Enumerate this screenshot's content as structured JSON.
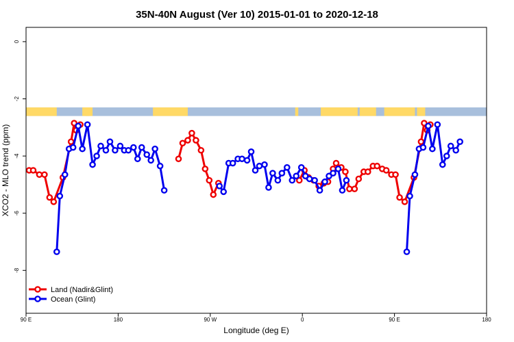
{
  "chart_data": {
    "type": "line",
    "title": "35N-40N August (Ver 10)   2015-01-01 to 2020-12-18",
    "xlabel": "Longitude (deg E)",
    "ylabel": "XCO2 - MLO trend (ppm)",
    "xlim": [
      90,
      540
    ],
    "ylim": [
      -9.5,
      0.5
    ],
    "x_ticks": [
      {
        "value": 90,
        "label": "90 E"
      },
      {
        "value": 180,
        "label": "180"
      },
      {
        "value": 270,
        "label": "90 W"
      },
      {
        "value": 360,
        "label": "0"
      },
      {
        "value": 450,
        "label": "90 E"
      },
      {
        "value": 540,
        "label": "180"
      }
    ],
    "y_ticks": [
      {
        "value": 0,
        "label": "0"
      },
      {
        "value": -2,
        "label": "-2"
      },
      {
        "value": -4,
        "label": "-4"
      },
      {
        "value": -6,
        "label": "-6"
      },
      {
        "value": -8,
        "label": "-8"
      }
    ],
    "grid": false,
    "legend_position": "bottom-left",
    "land_ocean_strip": {
      "y_range": [
        -2.6,
        -2.3
      ],
      "land_color": "#ffd966",
      "ocean_color": "#a8bfdc",
      "land_spans": [
        [
          90,
          120
        ],
        [
          145,
          155
        ],
        [
          148,
          152
        ],
        [
          214,
          248
        ],
        [
          353,
          356
        ],
        [
          378,
          414
        ],
        [
          416,
          432
        ],
        [
          440,
          470
        ],
        [
          472,
          480
        ]
      ]
    },
    "series": [
      {
        "name": "Land (Nadir&Glint)",
        "color": "#ee0000",
        "segments": [
          [
            [
              93,
              -4.5
            ],
            [
              97,
              -4.5
            ],
            [
              103,
              -4.65
            ],
            [
              108,
              -4.65
            ],
            [
              113,
              -5.45
            ],
            [
              117,
              -5.6
            ],
            [
              126,
              -4.75
            ],
            [
              134,
              -3.5
            ],
            [
              137,
              -2.85
            ],
            [
              139,
              -3.1
            ],
            [
              143,
              -2.9
            ]
          ],
          [
            [
              239,
              -4.1
            ],
            [
              243,
              -3.55
            ],
            [
              248,
              -3.45
            ],
            [
              252,
              -3.2
            ],
            [
              256,
              -3.45
            ],
            [
              261,
              -3.8
            ],
            [
              265,
              -4.45
            ],
            [
              269,
              -4.85
            ],
            [
              273,
              -5.35
            ],
            [
              278,
              -4.95
            ]
          ],
          [
            [
              357,
              -4.85
            ],
            [
              362,
              -4.5
            ],
            [
              366,
              -4.75
            ],
            [
              371,
              -4.85
            ],
            [
              376,
              -5.05
            ],
            [
              381,
              -4.95
            ],
            [
              385,
              -4.9
            ],
            [
              390,
              -4.45
            ],
            [
              393,
              -4.25
            ],
            [
              398,
              -4.4
            ],
            [
              402,
              -4.55
            ],
            [
              406,
              -5.15
            ],
            [
              411,
              -5.15
            ],
            [
              415,
              -4.8
            ],
            [
              420,
              -4.55
            ],
            [
              424,
              -4.55
            ],
            [
              429,
              -4.35
            ],
            [
              433,
              -4.35
            ],
            [
              438,
              -4.45
            ],
            [
              442,
              -4.5
            ],
            [
              447,
              -4.65
            ],
            [
              451,
              -4.65
            ],
            [
              455,
              -5.45
            ],
            [
              460,
              -5.6
            ],
            [
              469,
              -4.75
            ],
            [
              476,
              -3.5
            ],
            [
              479,
              -2.85
            ],
            [
              482,
              -3.1
            ],
            [
              485,
              -2.9
            ]
          ]
        ]
      },
      {
        "name": "Ocean (Glint)",
        "color": "#0000ee",
        "segments": [
          [
            [
              120,
              -7.35
            ],
            [
              123,
              -5.4
            ],
            [
              128,
              -4.65
            ],
            [
              132,
              -3.75
            ],
            [
              136,
              -3.7
            ],
            [
              141,
              -2.95
            ],
            [
              145,
              -3.75
            ],
            [
              150,
              -2.9
            ],
            [
              155,
              -4.3
            ],
            [
              159,
              -4.0
            ],
            [
              163,
              -3.65
            ],
            [
              168,
              -3.8
            ],
            [
              172,
              -3.5
            ],
            [
              177,
              -3.8
            ],
            [
              182,
              -3.65
            ],
            [
              186,
              -3.8
            ],
            [
              190,
              -3.8
            ],
            [
              195,
              -3.7
            ],
            [
              199,
              -4.1
            ],
            [
              203,
              -3.7
            ],
            [
              208,
              -3.95
            ],
            [
              212,
              -4.15
            ],
            [
              216,
              -3.75
            ],
            [
              221,
              -4.35
            ],
            [
              225,
              -5.2
            ]
          ],
          [
            [
              279,
              -5.05
            ],
            [
              283,
              -5.25
            ],
            [
              288,
              -4.25
            ],
            [
              292,
              -4.25
            ],
            [
              297,
              -4.1
            ],
            [
              301,
              -4.1
            ],
            [
              306,
              -4.15
            ],
            [
              310,
              -3.85
            ],
            [
              314,
              -4.5
            ],
            [
              318,
              -4.35
            ],
            [
              323,
              -4.3
            ],
            [
              327,
              -5.1
            ],
            [
              331,
              -4.6
            ],
            [
              336,
              -4.85
            ],
            [
              340,
              -4.6
            ],
            [
              345,
              -4.4
            ],
            [
              350,
              -4.85
            ],
            [
              354,
              -4.7
            ],
            [
              359,
              -4.4
            ],
            [
              363,
              -4.7
            ],
            [
              367,
              -4.8
            ],
            [
              372,
              -4.85
            ],
            [
              377,
              -5.2
            ],
            [
              382,
              -4.9
            ],
            [
              386,
              -4.7
            ],
            [
              390,
              -4.6
            ],
            [
              395,
              -4.45
            ],
            [
              399,
              -5.2
            ],
            [
              403,
              -4.85
            ]
          ],
          [
            [
              462,
              -7.35
            ],
            [
              465,
              -5.4
            ],
            [
              470,
              -4.65
            ],
            [
              474,
              -3.75
            ],
            [
              478,
              -3.7
            ],
            [
              483,
              -2.95
            ],
            [
              487,
              -3.75
            ],
            [
              492,
              -2.9
            ],
            [
              497,
              -4.3
            ],
            [
              501,
              -4.0
            ],
            [
              505,
              -3.65
            ],
            [
              510,
              -3.8
            ],
            [
              514,
              -3.5
            ]
          ]
        ]
      }
    ]
  }
}
